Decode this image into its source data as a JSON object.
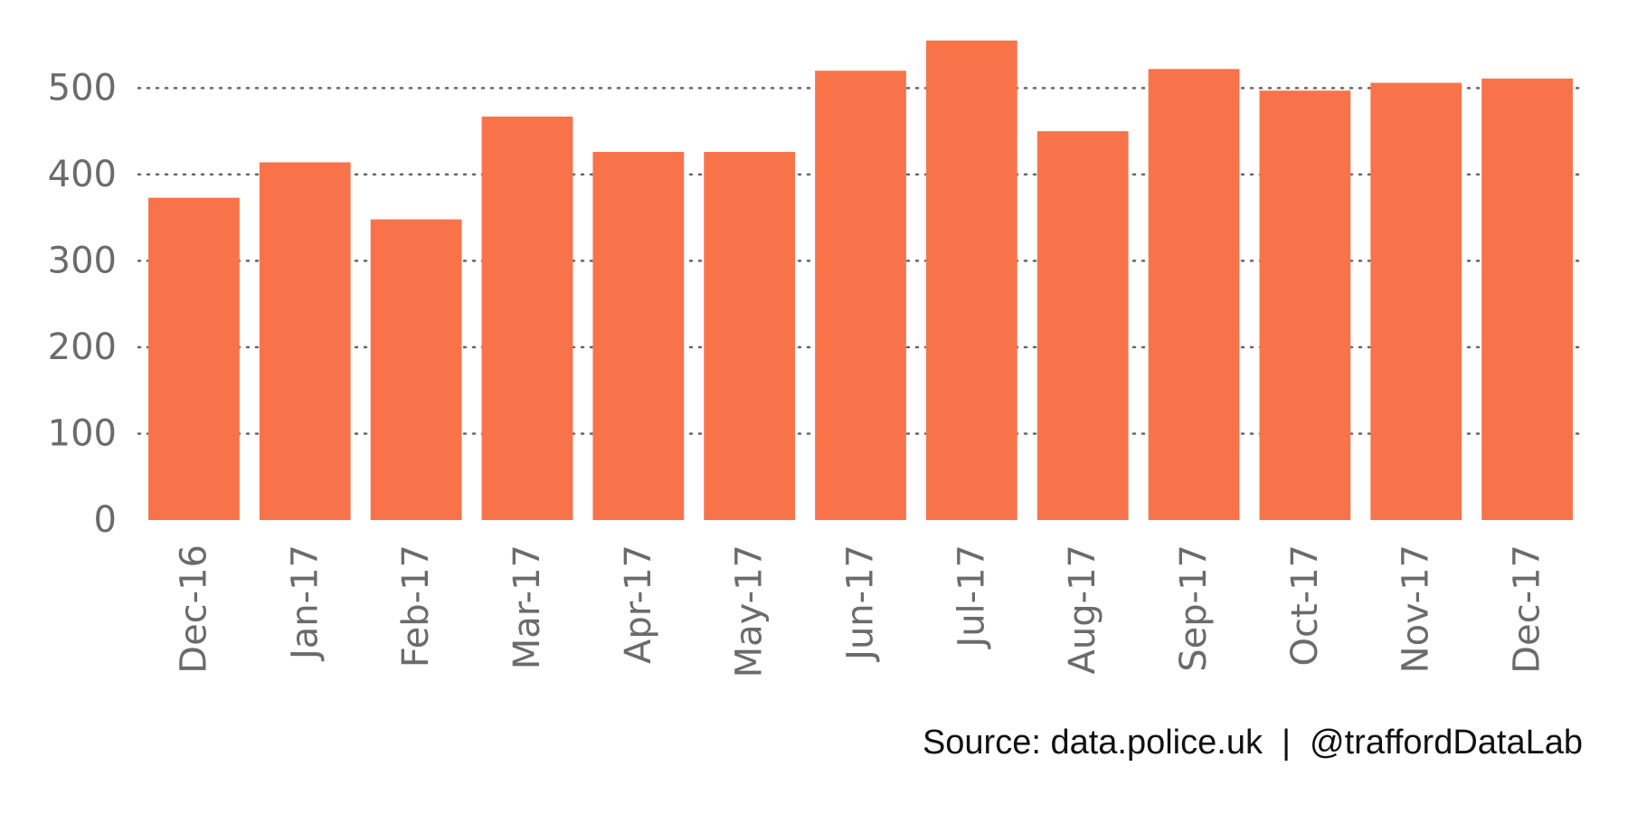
{
  "chart_data": {
    "type": "bar",
    "categories": [
      "Dec-16",
      "Jan-17",
      "Feb-17",
      "Mar-17",
      "Apr-17",
      "May-17",
      "Jun-17",
      "Jul-17",
      "Aug-17",
      "Sep-17",
      "Oct-17",
      "Nov-17",
      "Dec-17"
    ],
    "values": [
      373,
      414,
      348,
      467,
      426,
      426,
      520,
      555,
      450,
      522,
      497,
      506,
      511
    ],
    "title": "",
    "xlabel": "",
    "ylabel": "",
    "ylim": [
      0,
      560
    ],
    "yticks": [
      0,
      100,
      200,
      300,
      400,
      500
    ],
    "grid": "horizontal dotted",
    "bar_color": "#F8734A"
  },
  "caption": "Source: data.police.uk  |  @traffordDataLab"
}
